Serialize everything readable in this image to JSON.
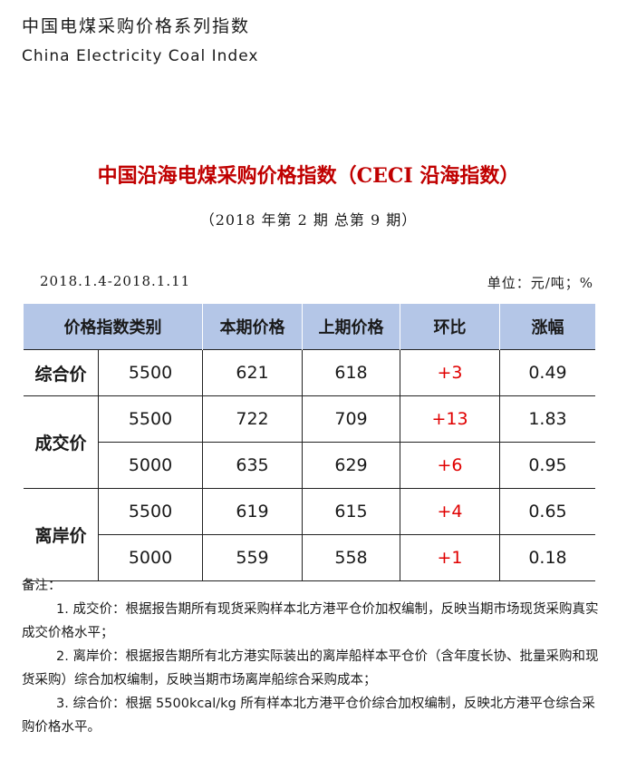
{
  "header": {
    "title_cn": "中国电煤采购价格系列指数",
    "title_en": "China Electricity Coal Index"
  },
  "doc": {
    "title": "中国沿海电煤采购价格指数（CECI 沿海指数）",
    "issue": "（2018 年第 2 期  总第 9 期）",
    "date_range": "2018.1.4-2018.1.11",
    "unit": "单位：元/吨；%"
  },
  "table": {
    "columns": [
      "价格指数类别",
      "本期价格",
      "上期价格",
      "环比",
      "涨幅"
    ],
    "groups": [
      {
        "category": "综合价",
        "rows": [
          {
            "spec": "5500",
            "current": "621",
            "previous": "618",
            "mom": "+3",
            "change": "0.49"
          }
        ]
      },
      {
        "category": "成交价",
        "rows": [
          {
            "spec": "5500",
            "current": "722",
            "previous": "709",
            "mom": "+13",
            "change": "1.83"
          },
          {
            "spec": "5000",
            "current": "635",
            "previous": "629",
            "mom": "+6",
            "change": "0.95"
          }
        ]
      },
      {
        "category": "离岸价",
        "rows": [
          {
            "spec": "5500",
            "current": "619",
            "previous": "615",
            "mom": "+4",
            "change": "0.65"
          },
          {
            "spec": "5000",
            "current": "559",
            "previous": "558",
            "mom": "+1",
            "change": "0.18"
          }
        ]
      }
    ],
    "mom_color": "#e00000",
    "header_bg": "#b4c6e7"
  },
  "notes": {
    "label": "备注：",
    "items": [
      "1. 成交价：根据报告期所有现货采购样本北方港平仓价加权编制，反映当期市场现货采购真实成交价格水平；",
      "2. 离岸价：根据报告期所有北方港实际装出的离岸船样本平仓价（含年度长协、批量采购和现货采购）综合加权编制，反映当期市场离岸船综合采购成本；",
      "3. 综合价：根据 5500kcal/kg 所有样本北方港平仓价综合加权编制，反映北方港平仓综合采购价格水平。"
    ]
  }
}
